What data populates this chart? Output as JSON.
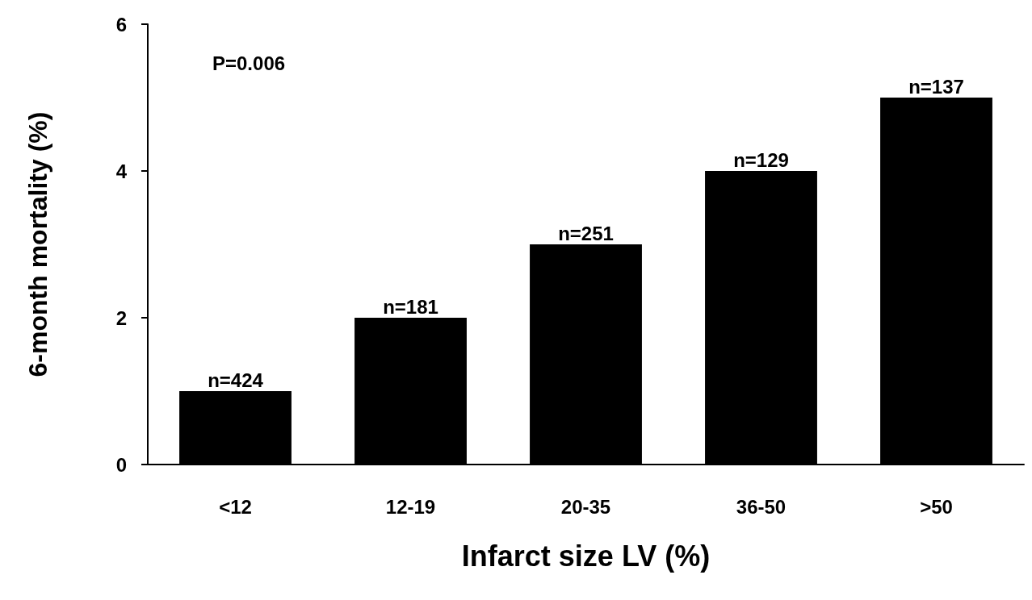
{
  "chart_data": {
    "type": "bar",
    "xlabel": "Infarct size LV (%)",
    "ylabel": "6-month mortality (%)",
    "categories": [
      "<12",
      "12-19",
      "20-35",
      "36-50",
      ">50"
    ],
    "values": [
      1.0,
      2.0,
      3.0,
      4.0,
      5.0
    ],
    "color": "#000000",
    "ylim": [
      0,
      6
    ],
    "yticks": [
      0,
      2,
      4,
      6
    ],
    "grid": false,
    "annotations": [
      "P=0.006",
      {
        "text": "n=424",
        "x": "<12",
        "y": 1.0
      },
      {
        "text": "n=181",
        "x": "12-19",
        "y": 2.0
      },
      {
        "text": "n=251",
        "x": "20-35",
        "y": 3.0
      },
      {
        "text": "n=129",
        "x": "36-50",
        "y": 4.0
      },
      {
        "text": "n=137",
        "x": ">50",
        "y": 5.0
      }
    ]
  }
}
